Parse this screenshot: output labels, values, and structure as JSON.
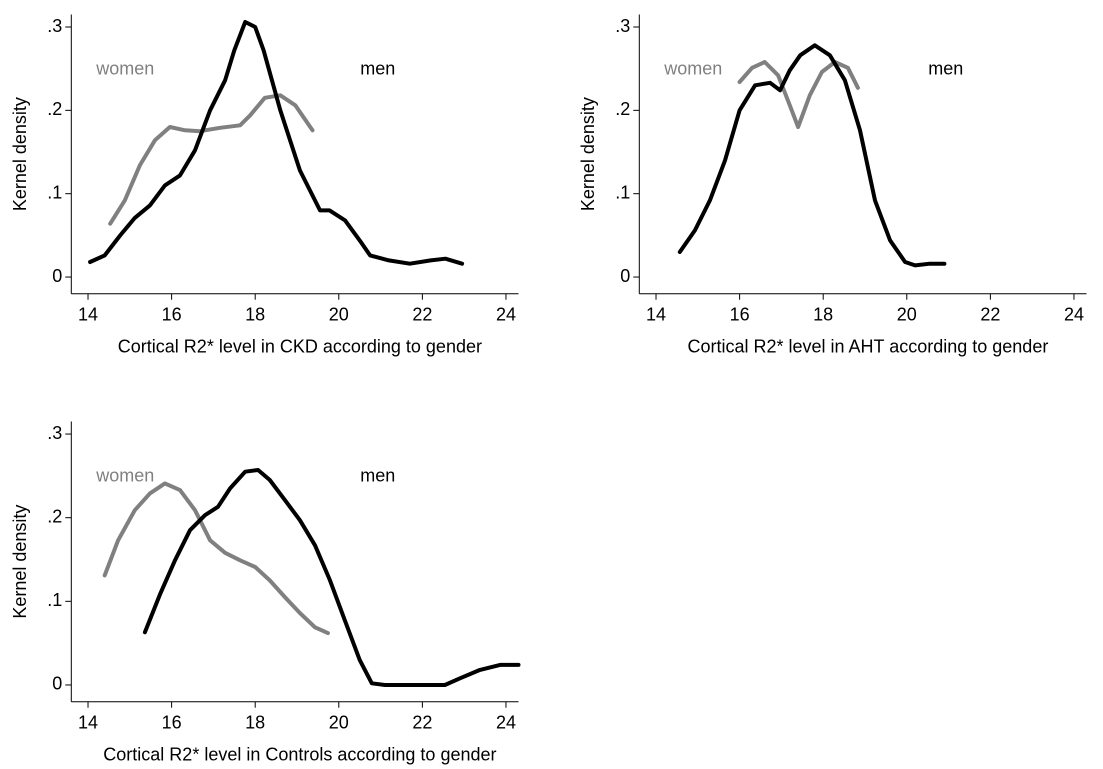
{
  "chart_data": [
    {
      "type": "line",
      "xlabel": "Cortical R2* level in CKD according to gender",
      "ylabel": "Kernel density",
      "xlim": [
        13.6,
        24.3
      ],
      "ylim": [
        -0.02,
        0.315
      ],
      "xticks": [
        14,
        16,
        18,
        20,
        22,
        24
      ],
      "yticks": [
        0,
        {
          "value": 0.1,
          "label": ".1"
        },
        {
          "value": 0.2,
          "label": ".2"
        },
        {
          "value": 0.3,
          "label": ".3"
        }
      ],
      "series": [
        {
          "name": "women",
          "color": "#808080",
          "x": [
            14.53,
            14.88,
            15.24,
            15.6,
            15.96,
            16.32,
            16.68,
            17.16,
            17.64,
            17.88,
            18.23,
            18.6,
            18.96,
            19.37
          ],
          "values": [
            0.064,
            0.092,
            0.134,
            0.164,
            0.18,
            0.176,
            0.175,
            0.179,
            0.182,
            0.194,
            0.215,
            0.218,
            0.206,
            0.176
          ]
        },
        {
          "name": "men",
          "color": "#000000",
          "x": [
            14.05,
            14.4,
            14.77,
            15.12,
            15.48,
            15.84,
            16.2,
            16.56,
            16.92,
            17.28,
            17.5,
            17.76,
            18.0,
            18.2,
            18.6,
            19.07,
            19.55,
            19.78,
            20.15,
            20.5,
            20.75,
            21.2,
            21.7,
            22.2,
            22.55,
            22.95
          ],
          "values": [
            0.018,
            0.026,
            0.05,
            0.071,
            0.086,
            0.11,
            0.122,
            0.152,
            0.2,
            0.236,
            0.272,
            0.306,
            0.3,
            0.272,
            0.2,
            0.128,
            0.08,
            0.08,
            0.068,
            0.044,
            0.026,
            0.02,
            0.016,
            0.02,
            0.022,
            0.016
          ]
        }
      ]
    },
    {
      "type": "line",
      "xlabel": "Cortical R2* level in AHT according to gender",
      "ylabel": "Kernel density",
      "xlim": [
        13.6,
        24.3
      ],
      "ylim": [
        -0.02,
        0.315
      ],
      "xticks": [
        14,
        16,
        18,
        20,
        22,
        24
      ],
      "yticks": [
        0,
        {
          "value": 0.1,
          "label": ".1"
        },
        {
          "value": 0.2,
          "label": ".2"
        },
        {
          "value": 0.3,
          "label": ".3"
        }
      ],
      "series": [
        {
          "name": "women",
          "color": "#808080",
          "x": [
            16.0,
            16.3,
            16.6,
            16.92,
            17.2,
            17.4,
            17.68,
            17.97,
            18.28,
            18.59,
            18.83
          ],
          "values": [
            0.234,
            0.251,
            0.258,
            0.242,
            0.206,
            0.18,
            0.218,
            0.246,
            0.258,
            0.251,
            0.227
          ]
        },
        {
          "name": "men",
          "color": "#000000",
          "x": [
            14.57,
            14.93,
            15.29,
            15.65,
            16.0,
            16.37,
            16.73,
            16.97,
            17.2,
            17.45,
            17.8,
            18.16,
            18.52,
            18.88,
            19.24,
            19.6,
            19.96,
            20.2,
            20.55,
            20.9
          ],
          "values": [
            0.03,
            0.056,
            0.092,
            0.14,
            0.2,
            0.23,
            0.233,
            0.224,
            0.248,
            0.266,
            0.278,
            0.266,
            0.236,
            0.176,
            0.092,
            0.044,
            0.018,
            0.014,
            0.016,
            0.016
          ]
        }
      ]
    },
    {
      "type": "line",
      "xlabel": "Cortical R2* level in Controls according to gender",
      "ylabel": "Kernel density",
      "xlim": [
        13.6,
        24.3
      ],
      "ylim": [
        -0.02,
        0.315
      ],
      "xticks": [
        14,
        16,
        18,
        20,
        22,
        24
      ],
      "yticks": [
        0,
        {
          "value": 0.1,
          "label": ".1"
        },
        {
          "value": 0.2,
          "label": ".2"
        },
        {
          "value": 0.3,
          "label": ".3"
        }
      ],
      "series": [
        {
          "name": "women",
          "color": "#808080",
          "x": [
            14.4,
            14.72,
            15.12,
            15.48,
            15.84,
            16.2,
            16.56,
            16.92,
            17.28,
            17.64,
            18.0,
            18.35,
            18.71,
            19.07,
            19.43,
            19.74
          ],
          "values": [
            0.131,
            0.173,
            0.209,
            0.229,
            0.241,
            0.233,
            0.209,
            0.173,
            0.158,
            0.149,
            0.141,
            0.125,
            0.105,
            0.086,
            0.069,
            0.062
          ]
        },
        {
          "name": "men",
          "color": "#000000",
          "x": [
            15.36,
            15.72,
            16.08,
            16.44,
            16.8,
            17.11,
            17.4,
            17.76,
            18.07,
            18.35,
            18.71,
            19.07,
            19.43,
            19.79,
            20.14,
            20.5,
            20.79,
            21.1,
            21.46,
            21.94,
            22.54,
            22.9,
            23.38,
            23.86,
            24.3
          ],
          "values": [
            0.063,
            0.108,
            0.149,
            0.185,
            0.203,
            0.213,
            0.235,
            0.255,
            0.257,
            0.245,
            0.221,
            0.197,
            0.167,
            0.125,
            0.078,
            0.03,
            0.002,
            0,
            0,
            0,
            0,
            0.008,
            0.018,
            0.024,
            0.024
          ]
        }
      ]
    }
  ]
}
